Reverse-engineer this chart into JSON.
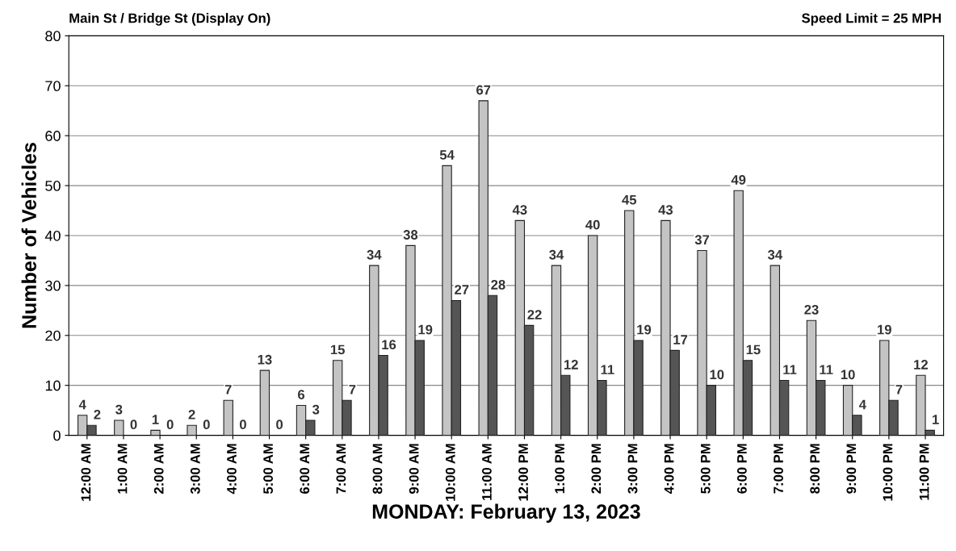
{
  "chart_data": {
    "type": "bar",
    "title": "Main St / Bridge St (Display On)",
    "annotations": [
      "Speed Limit = 25 MPH"
    ],
    "xlabel": "MONDAY: February 13, 2023",
    "ylabel": "Number of Vehicles",
    "categories": [
      "12:00 AM",
      "1:00 AM",
      "2:00 AM",
      "3:00 AM",
      "4:00 AM",
      "5:00 AM",
      "6:00 AM",
      "7:00 AM",
      "8:00 AM",
      "9:00 AM",
      "10:00 AM",
      "11:00 AM",
      "12:00 PM",
      "1:00 PM",
      "2:00 PM",
      "3:00 PM",
      "4:00 PM",
      "5:00 PM",
      "6:00 PM",
      "7:00 PM",
      "8:00 PM",
      "9:00 PM",
      "10:00 PM",
      "11:00 PM"
    ],
    "series": [
      {
        "color": "#c4c4c4",
        "values": [
          4,
          3,
          1,
          2,
          7,
          13,
          6,
          15,
          34,
          38,
          54,
          67,
          43,
          34,
          40,
          45,
          43,
          37,
          49,
          34,
          23,
          10,
          19,
          12
        ]
      },
      {
        "color": "#555555",
        "values": [
          2,
          0,
          0,
          0,
          0,
          0,
          3,
          7,
          16,
          19,
          27,
          28,
          22,
          12,
          11,
          19,
          17,
          10,
          15,
          11,
          11,
          4,
          7,
          1
        ]
      }
    ],
    "ylim": [
      0,
      80
    ],
    "yticks": [
      0,
      10,
      20,
      30,
      40,
      50,
      60,
      70,
      80
    ],
    "grid": "y",
    "data_labels": true
  }
}
